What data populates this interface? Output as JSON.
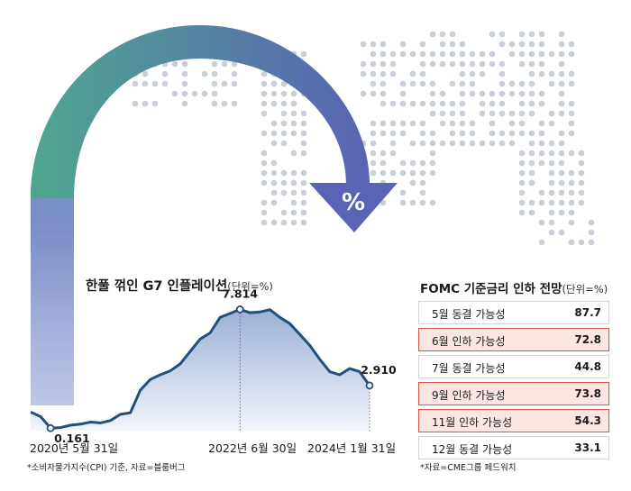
{
  "symbol": "%",
  "colors": {
    "arrow_start": "#4fa68f",
    "arrow_end": "#5a63b4",
    "map_dot": "#c9cfd8",
    "line": "#214f7e",
    "area_top": "#9cb0d6",
    "area_bottom": "#f2f5fb",
    "highlight_fill": "#fbe6e2",
    "highlight_border": "#d9574a"
  },
  "chart_data": [
    {
      "type": "area",
      "title": "한풀 꺾인 G7 인플레이션",
      "unit_label": "(단위=%)",
      "x_axis_labels": [
        "2020년 5월 31일",
        "2022년 6월 30일",
        "2024년 1월 31일"
      ],
      "series": [
        {
          "values": [
            1.2,
            0.9,
            0.161,
            0.2,
            0.35,
            0.42,
            0.55,
            0.5,
            0.65,
            1.05,
            1.15,
            2.6,
            3.3,
            3.6,
            3.85,
            4.3,
            5.1,
            5.9,
            6.3,
            7.3,
            7.55,
            7.814,
            7.6,
            7.65,
            7.8,
            7.3,
            6.9,
            6.2,
            5.5,
            4.6,
            3.8,
            3.6,
            4.0,
            3.8,
            2.91
          ]
        }
      ],
      "annotations": [
        {
          "label": "0.161",
          "index": 2,
          "value": 0.161
        },
        {
          "label": "7.814",
          "index": 21,
          "value": 7.814
        },
        {
          "label": "2.910",
          "index": 34,
          "value": 2.91
        }
      ],
      "ylim": [
        0,
        9
      ],
      "source": "*소비자물가지수(CPI) 기준, 자료=블룸버그"
    },
    {
      "type": "table",
      "title": "FOMC 기준금리 인하 전망",
      "unit_label": "(단위=%)",
      "rows": [
        {
          "label": "5월 동결 가능성",
          "value": "87.7",
          "highlight": false
        },
        {
          "label": "6월 인하 가능성",
          "value": "72.8",
          "highlight": true
        },
        {
          "label": "7월 동결 가능성",
          "value": "44.8",
          "highlight": false
        },
        {
          "label": "9월 인하 가능성",
          "value": "73.8",
          "highlight": true
        },
        {
          "label": "11월 인하 가능성",
          "value": "54.3",
          "highlight": true
        },
        {
          "label": "12월 동결 가능성",
          "value": "33.1",
          "highlight": false
        }
      ],
      "source": "*자료=CME그룹 페드워치"
    }
  ]
}
